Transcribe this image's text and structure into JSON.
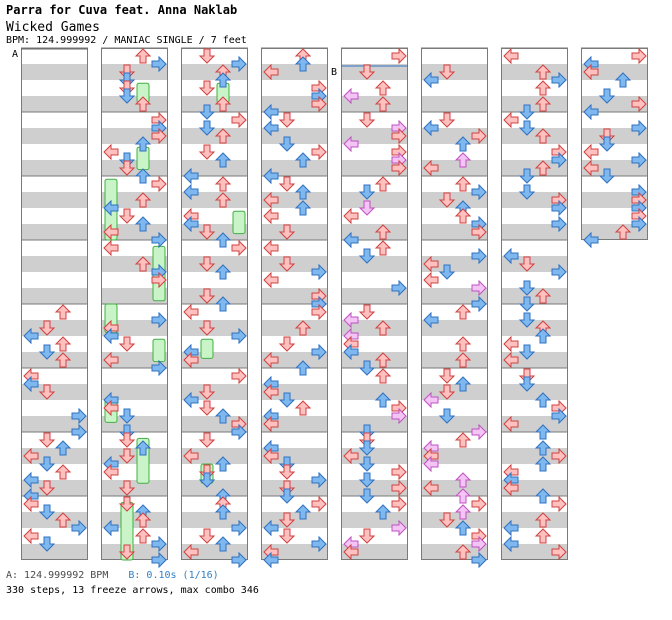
{
  "header": {
    "title": "Parra for Cuva feat. Anna Naklab",
    "subtitle": "Wicked Games",
    "info": "BPM: 124.999992 / MANIAC SINGLE / 7 feet"
  },
  "markers": {
    "a": "A",
    "b": "B"
  },
  "footer": {
    "bpm_a": "A: 124.999992 BPM",
    "bpm_b": "B: 0.10s (1/16)",
    "stats": "330 steps, 13 freeze arrows, max combo 346"
  },
  "colors": {
    "red_fill": "#ffc0c0",
    "red_stroke": "#d04040",
    "blue_fill": "#7fb8ef",
    "blue_stroke": "#2f70c0",
    "pink_fill": "#f4c4f4",
    "pink_stroke": "#c050c0",
    "freeze_fill": "#c8f4c8",
    "freeze_stroke": "#40b040",
    "stripe": "#cfcfcf",
    "bar_line": "#7a7a7a"
  },
  "chart_data": {
    "type": "step-chart",
    "lanes": [
      "left",
      "down",
      "up",
      "right"
    ],
    "columns": 8,
    "measures_per_column": 8,
    "total_steps": 330,
    "freeze_arrows": 13,
    "max_combo": 346,
    "bpm": 124.999992,
    "stop": "0.10s (1/16)",
    "difficulty": "MANIAC",
    "mode": "SINGLE",
    "feet": 7
  }
}
